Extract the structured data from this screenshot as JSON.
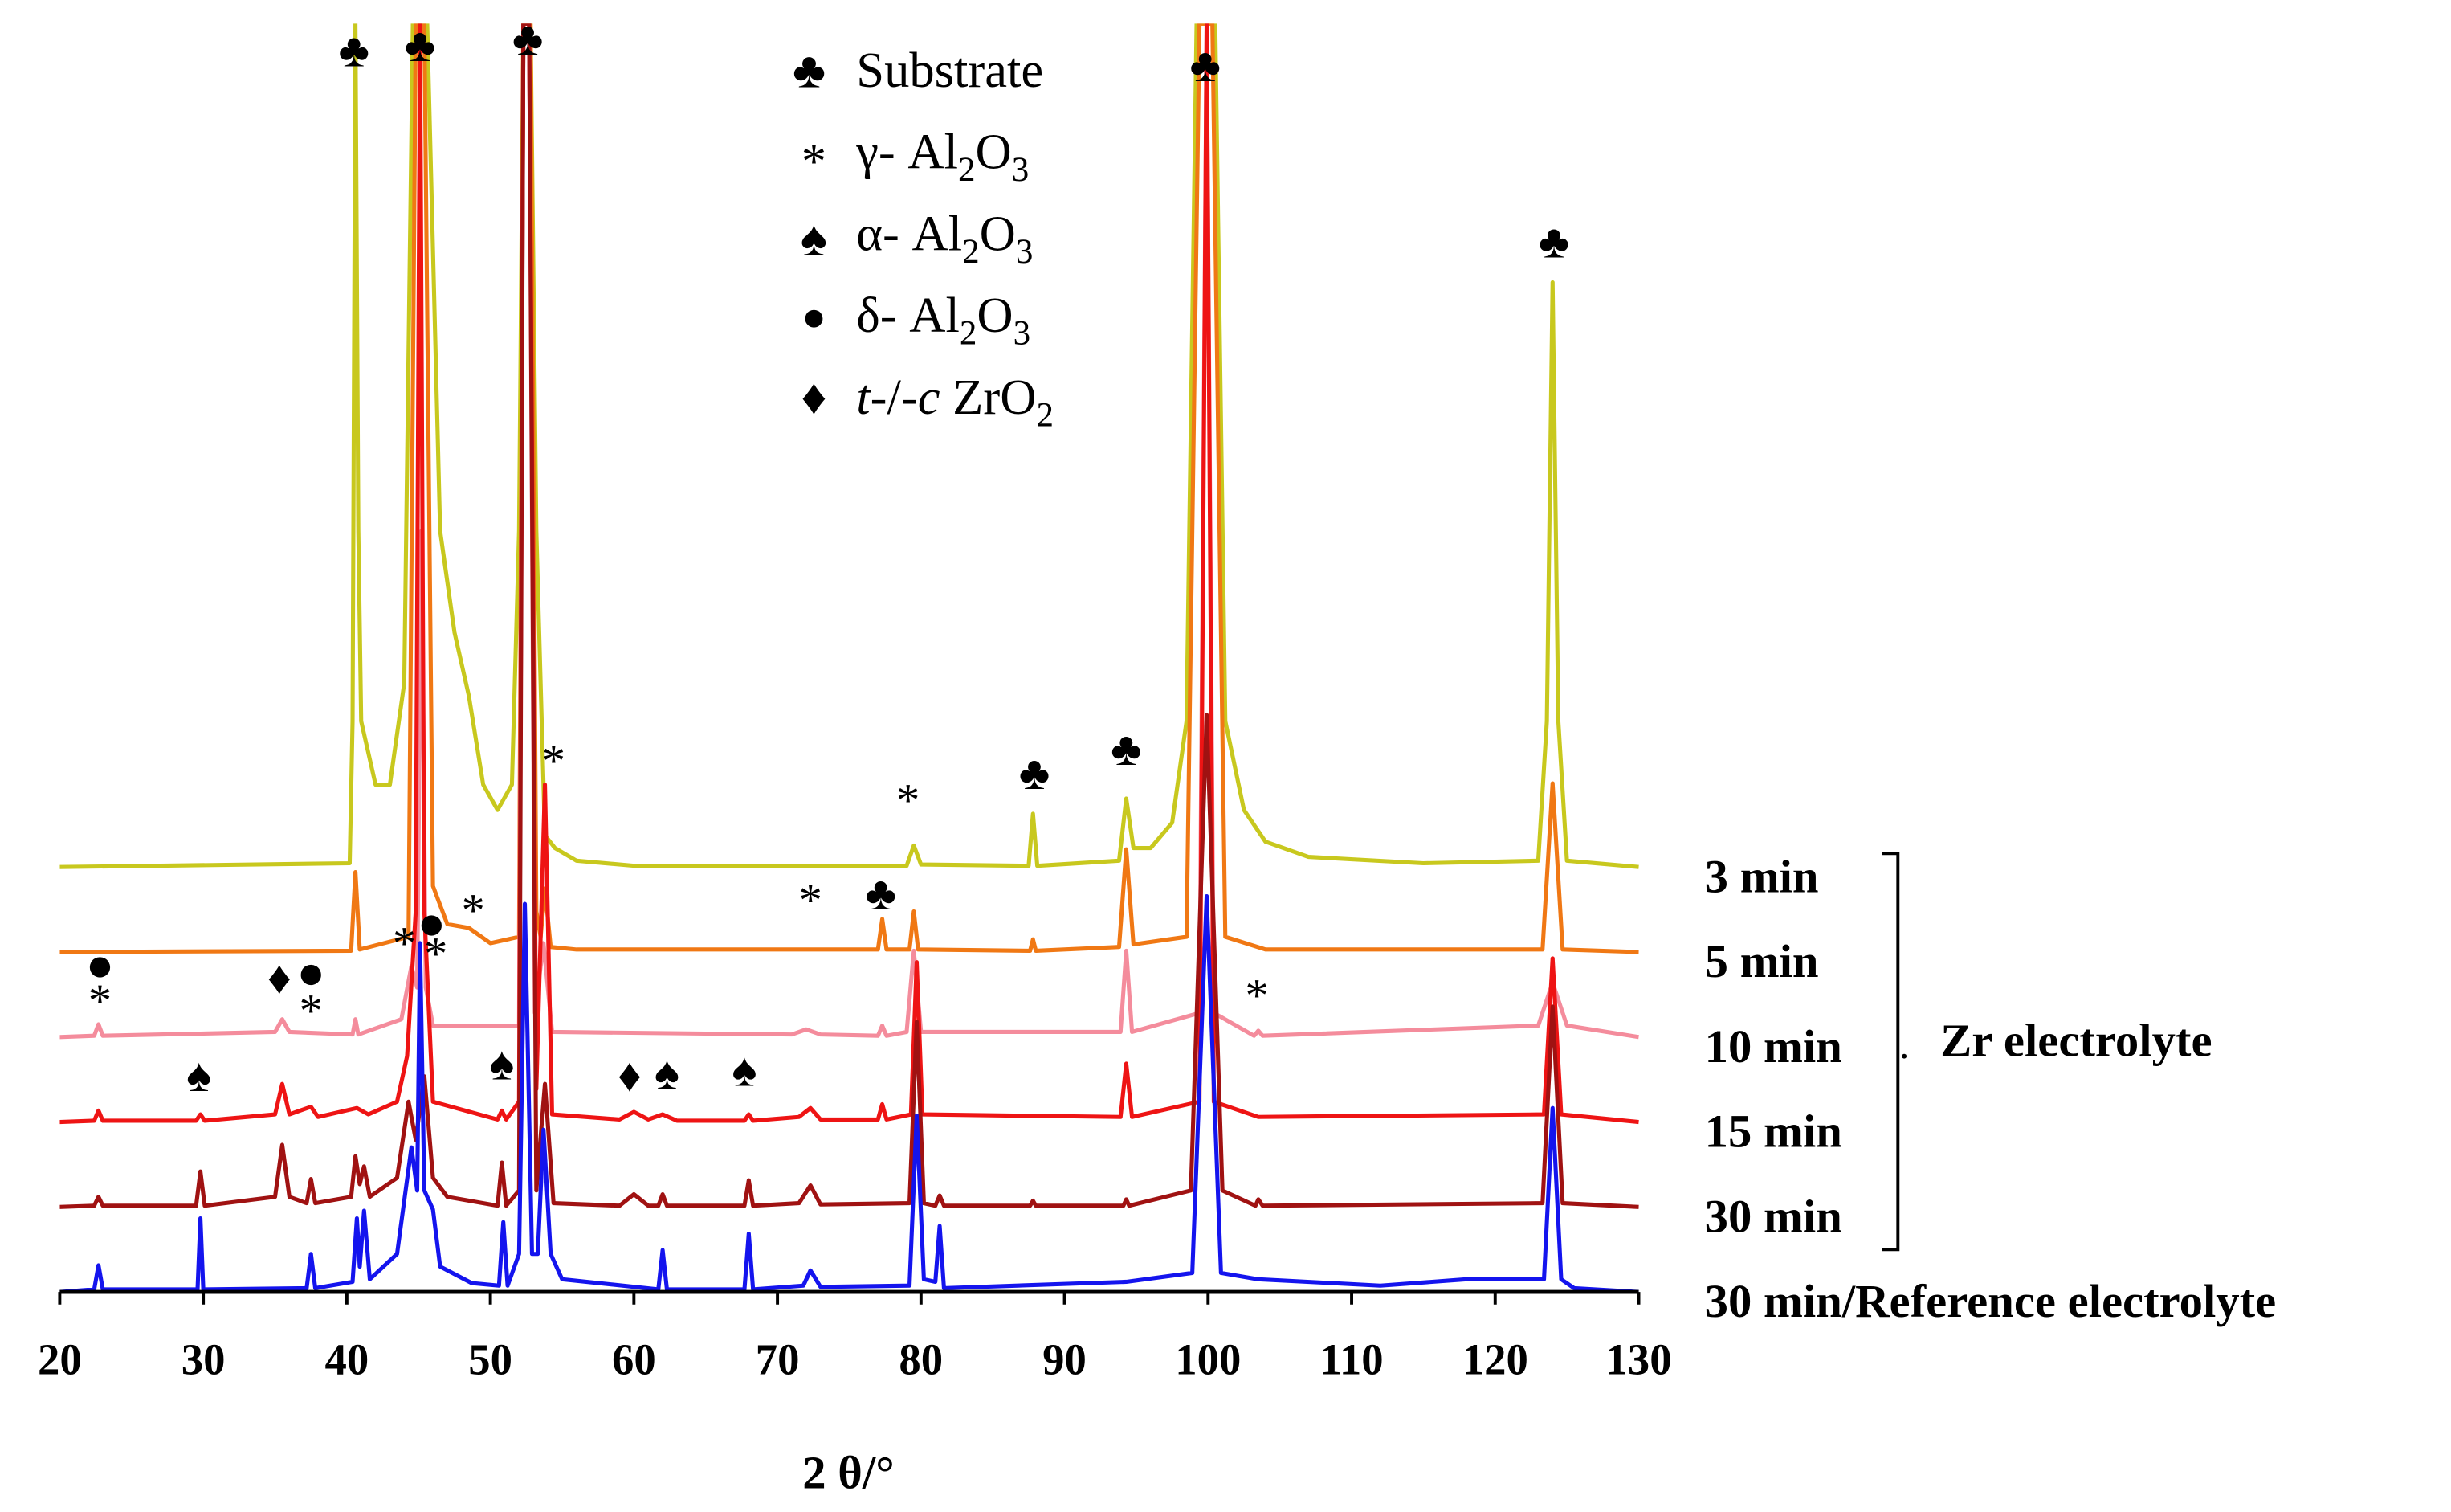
{
  "chart_data": {
    "type": "line",
    "x_label": "2 θ/°",
    "xlim": [
      20,
      130
    ],
    "xticks": [
      20,
      30,
      40,
      50,
      60,
      70,
      80,
      90,
      100,
      110,
      120,
      130
    ],
    "ylim": [
      0,
      100
    ],
    "group_label": "Zr electrolyte",
    "legend": [
      {
        "symbol": "♣",
        "label": [
          "Substrate"
        ]
      },
      {
        "symbol": "*",
        "label": [
          "γ- Al",
          "2",
          "O",
          "3"
        ]
      },
      {
        "symbol": "♠",
        "label": [
          "α- Al",
          "2",
          "O",
          "3"
        ]
      },
      {
        "symbol": "●",
        "label": [
          "δ- Al",
          "2",
          "O",
          "3"
        ]
      },
      {
        "symbol": "♦",
        "label": [
          "t",
          "-/-",
          "c",
          " ZrO",
          "2"
        ]
      }
    ],
    "series": [
      {
        "name": "3 min",
        "color": "#c8c81e",
        "x": [
          20,
          40.2,
          40.4,
          40.6,
          40.8,
          41,
          42,
          43,
          44,
          44.6,
          45.6,
          46.5,
          47.5,
          48.5,
          49.5,
          50.5,
          51.5,
          52,
          52.3,
          52.8,
          53.2,
          53.8,
          54.5,
          56,
          60,
          79,
          79.5,
          80,
          87.5,
          87.8,
          88.1,
          93.8,
          94.3,
          94.8,
          96,
          97.5,
          98.5,
          99.2,
          100.5,
          101.2,
          102.5,
          104,
          107,
          115,
          123,
          123.6,
          124,
          124.4,
          125,
          130
        ],
        "values": [
          33.5,
          33.8,
          45,
          100,
          60,
          45,
          40,
          40,
          48,
          100,
          100,
          60,
          52,
          47,
          40,
          38,
          40,
          60,
          100,
          100,
          60,
          36,
          35,
          34,
          33.6,
          33.6,
          35.2,
          33.7,
          33.6,
          37.7,
          33.6,
          34,
          38.9,
          35,
          35,
          37,
          45,
          100,
          100,
          45,
          38,
          35.5,
          34.3,
          33.8,
          34,
          45,
          79.6,
          45,
          34,
          33.5
        ]
      },
      {
        "name": "5 min",
        "color": "#f07814",
        "x": [
          20,
          40.3,
          40.6,
          40.9,
          44.3,
          44.8,
          45.4,
          46,
          47,
          48.5,
          50,
          52,
          52.3,
          52.8,
          53.2,
          53.5,
          53.8,
          54.2,
          56,
          77,
          77.3,
          77.6,
          79.2,
          79.5,
          79.8,
          87.6,
          87.8,
          88,
          93.8,
          94.3,
          94.8,
          98.5,
          99.4,
          100.3,
          101.2,
          104,
          123.3,
          124,
          124.7,
          130
        ],
        "values": [
          26.8,
          26.9,
          33.1,
          27,
          28,
          100,
          100,
          32,
          29,
          28.7,
          27.5,
          28,
          100,
          100,
          30,
          28,
          31.8,
          27.2,
          27,
          27,
          29.4,
          27,
          27,
          30,
          27,
          26.9,
          27.8,
          26.9,
          27.2,
          34.9,
          27.4,
          28,
          100,
          100,
          28,
          27,
          27,
          40.1,
          27,
          26.8
        ]
      },
      {
        "name": "10 min",
        "color": "#f48c9c",
        "x": [
          20,
          22.4,
          22.7,
          23,
          35,
          35.5,
          36,
          40.4,
          40.6,
          40.8,
          43.8,
          44.5,
          44.9,
          45.2,
          45.5,
          46,
          52,
          52.3,
          52.7,
          53.1,
          53.7,
          54.3,
          71,
          72,
          73,
          77,
          77.3,
          77.6,
          79,
          79.5,
          80,
          93.9,
          94.3,
          94.7,
          99.4,
          99.9,
          100.4,
          103.2,
          103.5,
          103.8,
          123,
          124,
          125,
          130
        ],
        "values": [
          20.1,
          20.2,
          21.1,
          20.2,
          20.5,
          21.5,
          20.5,
          20.3,
          21.5,
          20.3,
          21.5,
          25.7,
          24,
          60,
          24,
          21,
          21,
          100,
          100,
          22,
          27.5,
          20.5,
          20.3,
          20.7,
          20.3,
          20.2,
          21,
          20.2,
          20.5,
          26.9,
          20.5,
          20.5,
          26.9,
          20.5,
          22,
          100,
          22,
          20.2,
          20.6,
          20.2,
          21,
          24.4,
          21,
          20.1
        ]
      },
      {
        "name": "15 min",
        "color": "#ee1414",
        "x": [
          20,
          22.4,
          22.7,
          23,
          29.5,
          29.8,
          30.1,
          35,
          35.5,
          36,
          37.5,
          38,
          40.7,
          41.5,
          43.5,
          44.2,
          44.8,
          45.1,
          45.4,
          46,
          50.5,
          50.8,
          51.1,
          52,
          52.3,
          52.7,
          53.2,
          53.8,
          54.3,
          59,
          60,
          61,
          62,
          63,
          67.7,
          68,
          68.3,
          71.5,
          72.3,
          73,
          77,
          77.3,
          77.6,
          79.3,
          79.7,
          80.1,
          93.9,
          94.3,
          94.7,
          99.4,
          99.9,
          100.4,
          103.5,
          123.4,
          124,
          124.6,
          130
        ],
        "values": [
          13.4,
          13.5,
          14.3,
          13.5,
          13.5,
          14,
          13.5,
          14,
          16.4,
          14,
          14.6,
          13.8,
          14.5,
          14,
          15,
          18.6,
          30,
          100,
          30,
          15,
          13.6,
          14.3,
          13.6,
          15,
          100,
          100,
          16,
          40,
          14,
          13.6,
          14.2,
          13.6,
          14,
          13.5,
          13.5,
          14,
          13.5,
          13.8,
          14.5,
          13.6,
          13.6,
          14.8,
          13.6,
          14,
          26,
          14,
          13.8,
          18,
          13.8,
          15,
          100,
          15,
          13.8,
          14,
          26.3,
          14,
          13.4
        ]
      },
      {
        "name": "30 min",
        "color": "#a01212",
        "x": [
          20,
          22.4,
          22.7,
          23,
          29.5,
          29.8,
          30.1,
          35,
          35.5,
          36,
          37.2,
          37.5,
          37.8,
          40.3,
          40.6,
          40.9,
          41.2,
          41.6,
          43.5,
          44.3,
          44.8,
          45.4,
          46,
          47,
          50.5,
          50.8,
          51.1,
          52,
          52.3,
          52.7,
          53.2,
          53.8,
          54.4,
          59,
          60,
          61,
          61.7,
          62,
          62.3,
          67.7,
          68,
          68.3,
          71.5,
          72.3,
          73,
          79.2,
          79.7,
          80.2,
          81,
          81.3,
          81.6,
          87.6,
          87.8,
          88,
          94.1,
          94.3,
          94.5,
          98.8,
          99.9,
          101,
          103.3,
          103.5,
          103.8,
          123.3,
          124,
          124.7,
          130
        ],
        "values": [
          6.7,
          6.8,
          7.5,
          6.8,
          6.8,
          9.5,
          6.8,
          7.5,
          11.6,
          7.5,
          7,
          8.9,
          7,
          7.5,
          10.7,
          8.5,
          9.9,
          7.5,
          9,
          15,
          12,
          17,
          9,
          7.5,
          6.8,
          10.2,
          6.8,
          8,
          100,
          100,
          8,
          16.4,
          7,
          6.8,
          7.7,
          6.8,
          6.8,
          7.7,
          6.8,
          6.8,
          8.8,
          6.8,
          7,
          8.4,
          6.9,
          7,
          21.3,
          7,
          6.8,
          7.6,
          6.8,
          6.8,
          7.2,
          6.8,
          6.8,
          7.3,
          6.8,
          8,
          45.5,
          8,
          6.8,
          7.3,
          6.8,
          7,
          22.5,
          7,
          6.7
        ]
      },
      {
        "name": "30 min/Reference electrolyte",
        "color": "#1414ee",
        "x": [
          20,
          22.4,
          22.7,
          23,
          29.6,
          29.8,
          30,
          37.2,
          37.5,
          37.8,
          40.4,
          40.7,
          40.9,
          41.2,
          41.6,
          43.5,
          44.5,
          44.9,
          45.1,
          45.4,
          46,
          46.5,
          48.7,
          50.6,
          50.9,
          51.2,
          52,
          52.4,
          52.9,
          53.3,
          53.7,
          54.2,
          55,
          61.7,
          62,
          62.3,
          67.7,
          68,
          68.3,
          71.8,
          72.3,
          73,
          79.2,
          79.7,
          80.2,
          81,
          81.3,
          81.6,
          94.3,
          98.9,
          99.9,
          100.9,
          103.5,
          112,
          118,
          123.4,
          124,
          124.6,
          125.5,
          130
        ],
        "values": [
          0,
          0.2,
          2.1,
          0.2,
          0.2,
          5.8,
          0.2,
          0.3,
          3,
          0.3,
          0.8,
          5.8,
          2,
          6.4,
          1,
          3,
          11.4,
          8,
          27.5,
          8,
          6.5,
          2,
          0.7,
          0.5,
          5.5,
          0.5,
          3,
          30.6,
          3,
          3,
          12.8,
          3,
          1,
          0.2,
          3.3,
          0.2,
          0.2,
          4.6,
          0.2,
          0.5,
          1.7,
          0.4,
          0.5,
          13.9,
          1,
          0.8,
          5.2,
          0.3,
          0.8,
          1.5,
          31.2,
          1.5,
          1,
          0.5,
          1,
          1,
          14.5,
          1,
          0.3,
          0
        ]
      }
    ],
    "annotations": [
      {
        "text": "♣",
        "x": 40.5,
        "y": 97.5
      },
      {
        "text": "♣",
        "x": 45.1,
        "y": 97.9
      },
      {
        "text": "♣",
        "x": 52.6,
        "y": 98.4
      },
      {
        "text": "*",
        "x": 54.4,
        "y": 41.5
      },
      {
        "text": "*",
        "x": 79.1,
        "y": 38.4
      },
      {
        "text": "♣",
        "x": 87.9,
        "y": 40.5
      },
      {
        "text": "♣",
        "x": 94.3,
        "y": 42.4
      },
      {
        "text": "♣",
        "x": 99.8,
        "y": 96.3
      },
      {
        "text": "♣",
        "x": 124.1,
        "y": 82.4
      },
      {
        "text": "*",
        "x": 48.8,
        "y": 29.7
      },
      {
        "text": "*",
        "x": 72.3,
        "y": 30.5
      },
      {
        "text": "♣",
        "x": 77.2,
        "y": 31
      },
      {
        "text": "●",
        "x": 45.9,
        "y": 28.7
      },
      {
        "text": "*",
        "x": 44,
        "y": 27.1
      },
      {
        "text": "*",
        "x": 46.2,
        "y": 26.3
      },
      {
        "text": "●",
        "x": 22.8,
        "y": 25.4
      },
      {
        "text": "*",
        "x": 22.8,
        "y": 22.6
      },
      {
        "text": "♦",
        "x": 35.3,
        "y": 24.4
      },
      {
        "text": "●",
        "x": 37.5,
        "y": 24.8
      },
      {
        "text": "*",
        "x": 37.5,
        "y": 21.8
      },
      {
        "text": "*",
        "x": 103.4,
        "y": 23
      },
      {
        "text": "♠",
        "x": 29.7,
        "y": 16.7
      },
      {
        "text": "♠",
        "x": 50.8,
        "y": 17.6
      },
      {
        "text": "♦",
        "x": 59.7,
        "y": 16.7
      },
      {
        "text": "♠",
        "x": 62.3,
        "y": 16.9
      },
      {
        "text": "♠",
        "x": 67.7,
        "y": 17.1
      }
    ]
  }
}
